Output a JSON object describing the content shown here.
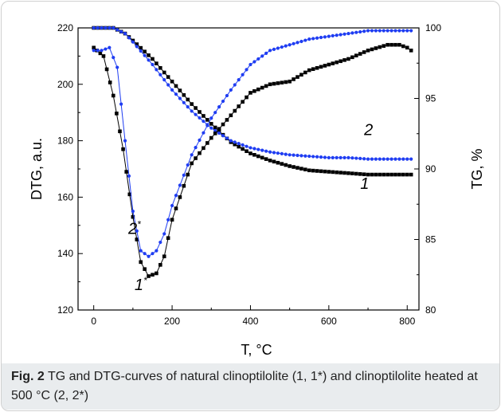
{
  "chart_data": {
    "type": "line",
    "xlabel": "T, °C",
    "ylabel_left": "DTG, a.u.",
    "ylabel_right": "TG, %",
    "xlim": [
      -40,
      830
    ],
    "ylim_left": [
      120,
      220
    ],
    "ylim_right": [
      80,
      100
    ],
    "x_ticks": [
      0,
      200,
      400,
      600,
      800
    ],
    "y_ticks_left": [
      120,
      140,
      160,
      180,
      200,
      220
    ],
    "y_ticks_right": [
      80,
      85,
      90,
      95,
      100
    ],
    "grid": false,
    "series": [
      {
        "name": "1",
        "axis": "right",
        "color": "#000000",
        "marker": "square",
        "x": [
          0,
          50,
          80,
          100,
          150,
          200,
          250,
          300,
          350,
          400,
          450,
          500,
          550,
          600,
          650,
          700,
          750,
          800,
          810
        ],
        "y": [
          100,
          100,
          99.6,
          99.1,
          97.8,
          96.2,
          94.6,
          93.2,
          91.9,
          91.1,
          90.6,
          90.2,
          89.9,
          89.8,
          89.7,
          89.6,
          89.6,
          89.6,
          89.6
        ]
      },
      {
        "name": "2",
        "axis": "right",
        "color": "#1f3df2",
        "marker": "circle",
        "x": [
          0,
          50,
          80,
          100,
          150,
          200,
          250,
          300,
          350,
          400,
          450,
          500,
          550,
          600,
          650,
          700,
          750,
          800,
          810
        ],
        "y": [
          100,
          100,
          99.6,
          99.0,
          97.4,
          95.6,
          94.1,
          92.9,
          92.0,
          91.5,
          91.2,
          91.0,
          90.9,
          90.8,
          90.8,
          90.7,
          90.7,
          90.7,
          90.7
        ]
      },
      {
        "name": "1*",
        "axis": "left",
        "color": "#000000",
        "marker": "square",
        "x": [
          0,
          25,
          50,
          75,
          100,
          120,
          140,
          160,
          180,
          200,
          250,
          300,
          350,
          400,
          450,
          500,
          550,
          600,
          650,
          700,
          750,
          780,
          800,
          810
        ],
        "y": [
          213,
          210,
          196,
          177,
          153,
          137,
          132,
          133,
          139,
          152,
          172,
          181,
          189,
          197,
          200,
          201,
          205,
          207,
          209,
          212,
          214,
          214,
          213,
          212
        ]
      },
      {
        "name": "2*",
        "axis": "left",
        "color": "#1f3df2",
        "marker": "circle",
        "x": [
          0,
          20,
          40,
          60,
          80,
          100,
          120,
          140,
          160,
          180,
          200,
          250,
          300,
          350,
          400,
          450,
          500,
          550,
          600,
          650,
          700,
          750,
          800,
          810
        ],
        "y": [
          212,
          212,
          213,
          206,
          180,
          155,
          141,
          139,
          141,
          147,
          157,
          175,
          188,
          198,
          207,
          212,
          214,
          216,
          217,
          218,
          219,
          219,
          219,
          219
        ]
      }
    ],
    "annotations": [
      {
        "text": "2",
        "sup": "",
        "x": 690,
        "y": 182,
        "axis": "left"
      },
      {
        "text": "1",
        "sup": "",
        "x": 680,
        "y": 163,
        "axis": "left"
      },
      {
        "text": "2",
        "sup": "*",
        "x": 88,
        "y": 147,
        "axis": "left"
      },
      {
        "text": "1",
        "sup": "*",
        "x": 104,
        "y": 127,
        "axis": "left"
      }
    ]
  },
  "caption": {
    "label": "Fig. 2",
    "text": " TG and DTG-curves of natural clinoptilolite (1, 1*) and clinoptilolite heated at 500 °C (2, 2*)"
  }
}
